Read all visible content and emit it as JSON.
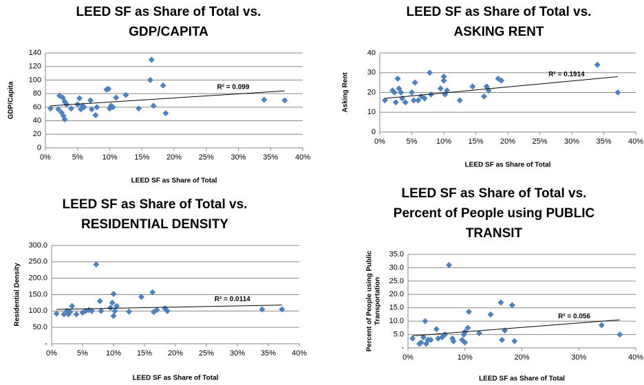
{
  "chart_data": [
    {
      "type": "scatter",
      "title": [
        "LEED SF as Share of Total vs.",
        "GDP/CAPITA"
      ],
      "xlabel": "LEED SF as Share of Total",
      "ylabel": [
        "GDP/Capita"
      ],
      "color": "#4f81bd",
      "grid": true,
      "x": [
        0.008,
        0.02,
        0.022,
        0.025,
        0.027,
        0.028,
        0.03,
        0.03,
        0.033,
        0.04,
        0.05,
        0.053,
        0.055,
        0.058,
        0.06,
        0.07,
        0.072,
        0.078,
        0.08,
        0.095,
        0.098,
        0.1,
        0.102,
        0.105,
        0.11,
        0.125,
        0.145,
        0.163,
        0.165,
        0.168,
        0.183,
        0.187,
        0.34,
        0.372
      ],
      "values": [
        58,
        57,
        77,
        52,
        74,
        47,
        42,
        68,
        64,
        58,
        64,
        73,
        57,
        62,
        60,
        70,
        57,
        48,
        60,
        86,
        87,
        58,
        62,
        60,
        74,
        78,
        58,
        100,
        130,
        62,
        92,
        51,
        71,
        70
      ],
      "trendline": {
        "label": "R² = 0.099",
        "x": [
          0.008,
          0.372
        ],
        "y": [
          62,
          84
        ]
      },
      "xlim": [
        0,
        0.4
      ],
      "ylim": [
        0,
        140
      ],
      "xticks": [
        {
          "value": 0,
          "label": "0%"
        },
        {
          "value": 0.05,
          "label": "5%"
        },
        {
          "value": 0.1,
          "label": "10%"
        },
        {
          "value": 0.15,
          "label": "15%"
        },
        {
          "value": 0.2,
          "label": "20%"
        },
        {
          "value": 0.25,
          "label": "25%"
        },
        {
          "value": 0.3,
          "label": "30%"
        },
        {
          "value": 0.35,
          "label": "35%"
        },
        {
          "value": 0.4,
          "label": "40%"
        }
      ],
      "yticks": [
        0,
        20,
        40,
        60,
        80,
        100,
        120,
        140
      ]
    },
    {
      "type": "scatter",
      "title": [
        "LEED SF as Share of Total vs.",
        "ASKING RENT"
      ],
      "xlabel": "LEED SF as Share of Total",
      "ylabel": [
        "Asking Rent"
      ],
      "color": "#4f81bd",
      "grid": true,
      "x": [
        0.008,
        0.02,
        0.023,
        0.025,
        0.028,
        0.03,
        0.033,
        0.035,
        0.04,
        0.05,
        0.053,
        0.055,
        0.06,
        0.065,
        0.07,
        0.078,
        0.08,
        0.095,
        0.1,
        0.1,
        0.102,
        0.105,
        0.125,
        0.145,
        0.163,
        0.167,
        0.17,
        0.185,
        0.19,
        0.34,
        0.372
      ],
      "values": [
        16,
        21,
        20,
        15,
        27,
        22,
        20,
        17,
        15,
        20,
        16,
        25,
        16,
        18,
        17,
        30,
        19,
        22,
        26,
        28,
        19,
        21,
        16,
        23,
        18,
        23,
        21,
        27,
        26,
        34,
        20
      ],
      "trendline": {
        "label": "R² = 0.1914",
        "x": [
          0.008,
          0.372
        ],
        "y": [
          17,
          28
        ]
      },
      "xlim": [
        0,
        0.4
      ],
      "ylim": [
        0,
        40
      ],
      "xticks": [
        {
          "value": 0,
          "label": "0%"
        },
        {
          "value": 0.05,
          "label": "5%"
        },
        {
          "value": 0.1,
          "label": "10%"
        },
        {
          "value": 0.15,
          "label": "15%"
        },
        {
          "value": 0.2,
          "label": "20%"
        },
        {
          "value": 0.25,
          "label": "25%"
        },
        {
          "value": 0.3,
          "label": "30%"
        },
        {
          "value": 0.35,
          "label": "35%"
        },
        {
          "value": 0.4,
          "label": "40%"
        }
      ],
      "yticks": [
        0,
        10,
        20,
        30,
        40
      ]
    },
    {
      "type": "scatter",
      "title": [
        "LEED SF as Share of Total vs.",
        "RESIDENTIAL DENSITY"
      ],
      "xlabel": "LEED SF as Share of Total",
      "ylabel": [
        "Residential Density"
      ],
      "color": "#4f81bd",
      "grid": true,
      "x": [
        0.008,
        0.02,
        0.025,
        0.027,
        0.03,
        0.033,
        0.04,
        0.05,
        0.055,
        0.06,
        0.065,
        0.072,
        0.078,
        0.08,
        0.095,
        0.098,
        0.1,
        0.1,
        0.102,
        0.105,
        0.125,
        0.145,
        0.163,
        0.165,
        0.17,
        0.183,
        0.187,
        0.34,
        0.372
      ],
      "values": [
        92,
        90,
        100,
        90,
        97,
        115,
        90,
        95,
        100,
        103,
        100,
        242,
        130,
        100,
        110,
        125,
        85,
        152,
        100,
        115,
        98,
        143,
        157,
        97,
        103,
        108,
        100,
        105,
        105
      ],
      "trendline": {
        "label": "R² = 0.0114",
        "x": [
          0.008,
          0.372
        ],
        "y": [
          105,
          118
        ]
      },
      "xlim": [
        0,
        0.4
      ],
      "ylim": [
        0,
        300
      ],
      "xticks": [
        {
          "value": 0,
          "label": "0%"
        },
        {
          "value": 0.05,
          "label": "5%"
        },
        {
          "value": 0.1,
          "label": "10%"
        },
        {
          "value": 0.15,
          "label": "15%"
        },
        {
          "value": 0.2,
          "label": "20%"
        },
        {
          "value": 0.25,
          "label": "25%"
        },
        {
          "value": 0.3,
          "label": "30%"
        },
        {
          "value": 0.35,
          "label": "35%"
        },
        {
          "value": 0.4,
          "label": "40%"
        }
      ],
      "yticks": [
        {
          "value": 0,
          "label": "-"
        },
        {
          "value": 50,
          "label": "50.0"
        },
        {
          "value": 100,
          "label": "100.0"
        },
        {
          "value": 150,
          "label": "150.0"
        },
        {
          "value": 200,
          "label": "200.0"
        },
        {
          "value": 250,
          "label": "250.0"
        },
        {
          "value": 300,
          "label": "300.0"
        }
      ]
    },
    {
      "type": "scatter",
      "title": [
        "LEED SF as Share of Total vs.",
        "Percent of People using PUBLIC",
        "TRANSIT"
      ],
      "xlabel": "LEED SF as Share of Total",
      "ylabel": [
        "Percent of People using Public",
        "Transportation"
      ],
      "color": "#4f81bd",
      "grid": true,
      "x": [
        0.008,
        0.02,
        0.023,
        0.027,
        0.03,
        0.032,
        0.035,
        0.04,
        0.05,
        0.053,
        0.06,
        0.065,
        0.072,
        0.078,
        0.08,
        0.095,
        0.098,
        0.1,
        0.1,
        0.105,
        0.107,
        0.125,
        0.145,
        0.163,
        0.165,
        0.17,
        0.183,
        0.187,
        0.34,
        0.372
      ],
      "values": [
        3.5,
        1.5,
        2,
        4,
        10,
        1.5,
        3,
        3,
        7,
        3.5,
        4,
        5,
        31,
        3.5,
        2.5,
        3,
        5,
        2,
        6,
        7.5,
        13.5,
        5.5,
        12.5,
        17,
        3,
        6.5,
        16,
        2.5,
        8.5,
        5
      ],
      "trendline": {
        "label": "R² = 0.056",
        "x": [
          0.008,
          0.372
        ],
        "y": [
          4.5,
          10.5
        ]
      },
      "xlim": [
        0,
        0.4
      ],
      "ylim": [
        0,
        35
      ],
      "xticks": [
        {
          "value": 0,
          "label": "0%"
        },
        {
          "value": 0.1,
          "label": "10%"
        },
        {
          "value": 0.2,
          "label": "20%"
        },
        {
          "value": 0.3,
          "label": "30%"
        },
        {
          "value": 0.4,
          "label": "40%"
        }
      ],
      "yticks": [
        {
          "value": 0,
          "label": "-"
        },
        {
          "value": 5,
          "label": "5.0"
        },
        {
          "value": 10,
          "label": "10.0"
        },
        {
          "value": 15,
          "label": "15.0"
        },
        {
          "value": 20,
          "label": "20.0"
        },
        {
          "value": 25,
          "label": "25.0"
        },
        {
          "value": 30,
          "label": "30.0"
        },
        {
          "value": 35,
          "label": "35.0"
        }
      ]
    }
  ]
}
